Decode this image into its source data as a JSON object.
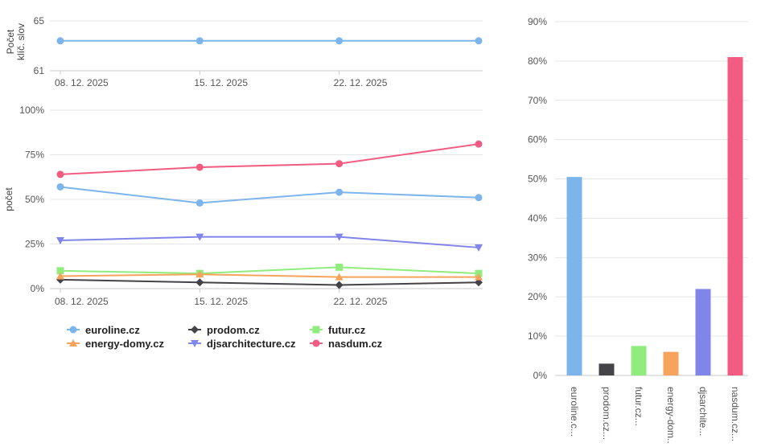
{
  "chart_data": [
    {
      "type": "line",
      "title": "",
      "ylabel": "Počet klíč. slov",
      "ylabel_lines": [
        "Počet",
        "klíč. slov"
      ],
      "xlabel": "",
      "x": [
        "08. 12. 2025",
        "15. 12. 2025",
        "22. 12. 2025",
        ""
      ],
      "x_tick_labels": [
        "08. 12. 2025",
        "15. 12. 2025",
        "22. 12. 2025"
      ],
      "yticks": [
        "65",
        "61"
      ],
      "ylim": [
        61,
        65
      ],
      "series": [
        {
          "name": "euroline.cz",
          "values": [
            63.4,
            63.4,
            63.4,
            63.4
          ]
        }
      ]
    },
    {
      "type": "line",
      "title": "",
      "ylabel": "počet",
      "xlabel": "",
      "x": [
        "08. 12. 2025",
        "15. 12. 2025",
        "22. 12. 2025",
        ""
      ],
      "x_tick_labels": [
        "08. 12. 2025",
        "15. 12. 2025",
        "22. 12. 2025"
      ],
      "yticks": [
        "100%",
        "75%",
        "50%",
        "25%",
        "0%"
      ],
      "ylim": [
        0,
        100
      ],
      "legend_position": "bottom-left",
      "series": [
        {
          "name": "euroline.cz",
          "values": [
            57,
            48,
            54,
            51
          ]
        },
        {
          "name": "prodom.cz",
          "values": [
            5,
            3.5,
            2,
            3.5
          ]
        },
        {
          "name": "futur.cz",
          "values": [
            10,
            8.5,
            12,
            8.5
          ]
        },
        {
          "name": "energy-domy.cz",
          "values": [
            7,
            8,
            6.5,
            6.5
          ]
        },
        {
          "name": "djsarchitecture.cz",
          "values": [
            27,
            29,
            29,
            23
          ]
        },
        {
          "name": "nasdum.cz",
          "values": [
            64,
            68,
            70,
            81
          ]
        }
      ]
    },
    {
      "type": "bar",
      "title": "",
      "categories": [
        "euroline.c...",
        "prodom.cz...",
        "futur.cz...",
        "energy-dom...",
        "djsarchite...",
        "nasdum.cz..."
      ],
      "values": [
        50.5,
        3,
        7.5,
        6,
        22,
        81
      ],
      "yticks": [
        "90%",
        "80%",
        "70%",
        "60%",
        "50%",
        "40%",
        "30%",
        "20%",
        "10%",
        "0%"
      ],
      "ylim": [
        0,
        90
      ]
    }
  ],
  "legend": {
    "items": [
      {
        "label": "euroline.cz",
        "color": "#7cb5ec",
        "marker": "circle"
      },
      {
        "label": "prodom.cz",
        "color": "#434348",
        "marker": "diamond"
      },
      {
        "label": "futur.cz",
        "color": "#90ed7d",
        "marker": "square"
      },
      {
        "label": "energy-domy.cz",
        "color": "#f7a35c",
        "marker": "triangle"
      },
      {
        "label": "djsarchitecture.cz",
        "color": "#8085e9",
        "marker": "triangle-down"
      },
      {
        "label": "nasdum.cz",
        "color": "#f15c80",
        "marker": "circle"
      }
    ]
  },
  "colors": [
    "#7cb5ec",
    "#434348",
    "#90ed7d",
    "#f7a35c",
    "#8085e9",
    "#f15c80"
  ],
  "markers": [
    "circle",
    "diamond",
    "square",
    "triangle",
    "triangle-down",
    "circle"
  ]
}
